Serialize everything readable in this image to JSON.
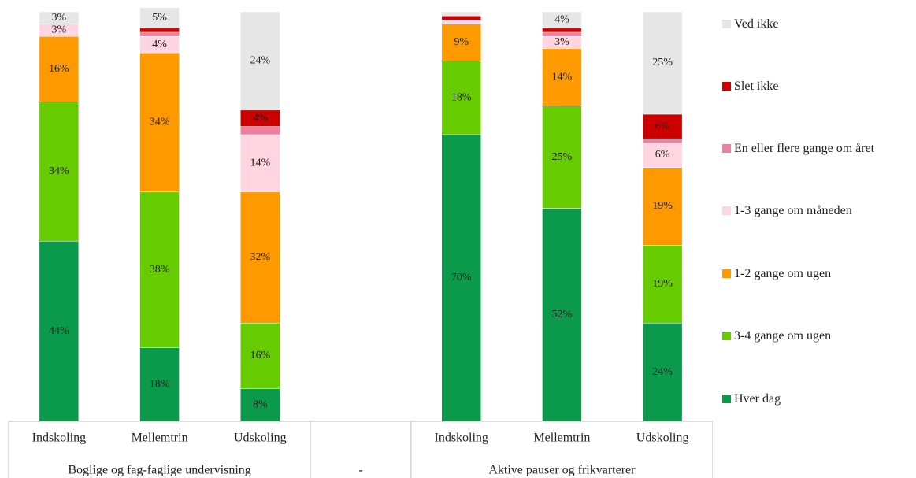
{
  "chart_data": {
    "type": "stacked_bar",
    "categories": [
      "Indskoling",
      "Mellemtrin",
      "Udskoling",
      null,
      "Indskoling",
      "Mellemtrin",
      "Udskoling"
    ],
    "groups": [
      "Boglige og fag-faglige undervisning",
      "-",
      "Aktive pauser og frikvarterer"
    ],
    "ylim": [
      0,
      100
    ],
    "series": [
      {
        "name": "Hver dag",
        "color": "#0b9a4b",
        "values": [
          44,
          18,
          8,
          null,
          70,
          52,
          24
        ],
        "value_labels": [
          "44%",
          "18%",
          "8%",
          null,
          "70%",
          "52%",
          "24%"
        ]
      },
      {
        "name": "3-4 gange om ugen",
        "color": "#66cc00",
        "values": [
          34,
          38,
          16,
          null,
          18,
          25,
          19
        ],
        "value_labels": [
          "34%",
          "38%",
          "16%",
          null,
          "18%",
          "25%",
          "19%"
        ]
      },
      {
        "name": "1-2 gange om ugen",
        "color": "#ff9900",
        "values": [
          16,
          34,
          32,
          null,
          9,
          14,
          19
        ],
        "value_labels": [
          "16%",
          "34%",
          "32%",
          null,
          "9%",
          "14%",
          "19%"
        ]
      },
      {
        "name": "1-3 gange om måneden",
        "color": "#ffd5e2",
        "values": [
          3,
          4,
          14,
          null,
          1,
          3,
          6
        ],
        "value_labels": [
          "3%",
          "4%",
          "14%",
          null,
          null,
          "3%",
          "6%"
        ]
      },
      {
        "name": "En eller flere gange om året",
        "color": "#ef7fa0",
        "values": [
          0,
          1,
          2,
          null,
          0,
          1,
          1
        ],
        "value_labels": [
          null,
          null,
          null,
          null,
          null,
          null,
          null
        ]
      },
      {
        "name": "Slet ikke",
        "color": "#cc0000",
        "values": [
          0,
          1,
          4,
          null,
          1,
          1,
          6
        ],
        "value_labels": [
          null,
          null,
          "4%",
          null,
          null,
          null,
          "6%"
        ]
      },
      {
        "name": "Ved ikke",
        "color": "#e6e6e6",
        "values": [
          3,
          5,
          24,
          null,
          1,
          4,
          25
        ],
        "value_labels": [
          "3%",
          "5%",
          "24%",
          null,
          null,
          "4%",
          "25%"
        ]
      }
    ]
  }
}
